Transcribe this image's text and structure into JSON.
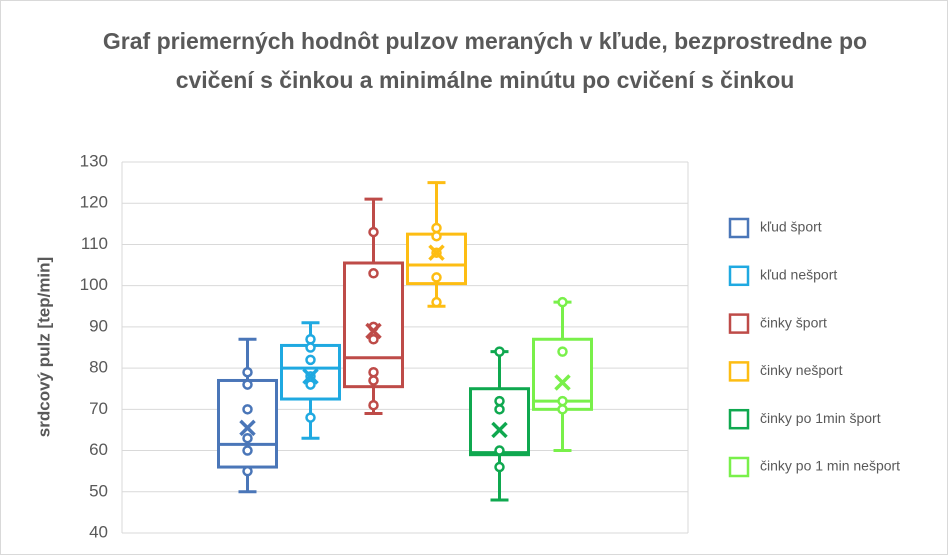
{
  "chart_data": {
    "type": "box",
    "title": "Graf priemerných hodnôt pulzov meraných v kľude, bezprostredne po cvičení s činkou a minimálne minútu po cvičení s činkou",
    "ylabel": "srdcový pulz [tep/min]",
    "ylim": [
      40,
      130
    ],
    "yticks": [
      40,
      50,
      60,
      70,
      80,
      90,
      100,
      110,
      120,
      130
    ],
    "grid": true,
    "legend": "right",
    "series": [
      {
        "name": "kľud šport",
        "color": "#4a76b8",
        "min": 50,
        "q1": 56,
        "median": 61.5,
        "q3": 77,
        "max": 87,
        "mean": 65.5,
        "points": [
          79,
          76,
          70,
          63,
          60,
          55
        ]
      },
      {
        "name": "kľud nešport",
        "color": "#1fa9e1",
        "min": 63,
        "q1": 72.5,
        "median": 80,
        "q3": 85.5,
        "max": 91,
        "mean": 78,
        "points": [
          87,
          85,
          82,
          78,
          76,
          68
        ]
      },
      {
        "name": "činky šport",
        "color": "#be4b48",
        "min": 69,
        "q1": 75.5,
        "median": 82.5,
        "q3": 105.5,
        "max": 121,
        "mean": 89,
        "points": [
          113,
          103,
          90,
          87,
          79,
          77,
          71
        ]
      },
      {
        "name": "činky nešport",
        "color": "#fdbd13",
        "min": 95,
        "q1": 100.5,
        "median": 105,
        "q3": 112.5,
        "max": 125,
        "mean": 108,
        "points": [
          114,
          112,
          108,
          102,
          96
        ]
      },
      {
        "name": "činky po 1min šport",
        "color": "#0fa84f",
        "min": 48,
        "q1": 59,
        "median": 59.5,
        "q3": 75,
        "max": 84,
        "mean": 65,
        "points": [
          84,
          72,
          70,
          60,
          56
        ]
      },
      {
        "name": "činky po 1 min nešport",
        "color": "#79f04a",
        "min": 60,
        "q1": 70,
        "median": 72,
        "q3": 87,
        "max": 96,
        "mean": 76.5,
        "points": [
          96,
          84,
          72,
          70
        ]
      }
    ]
  }
}
